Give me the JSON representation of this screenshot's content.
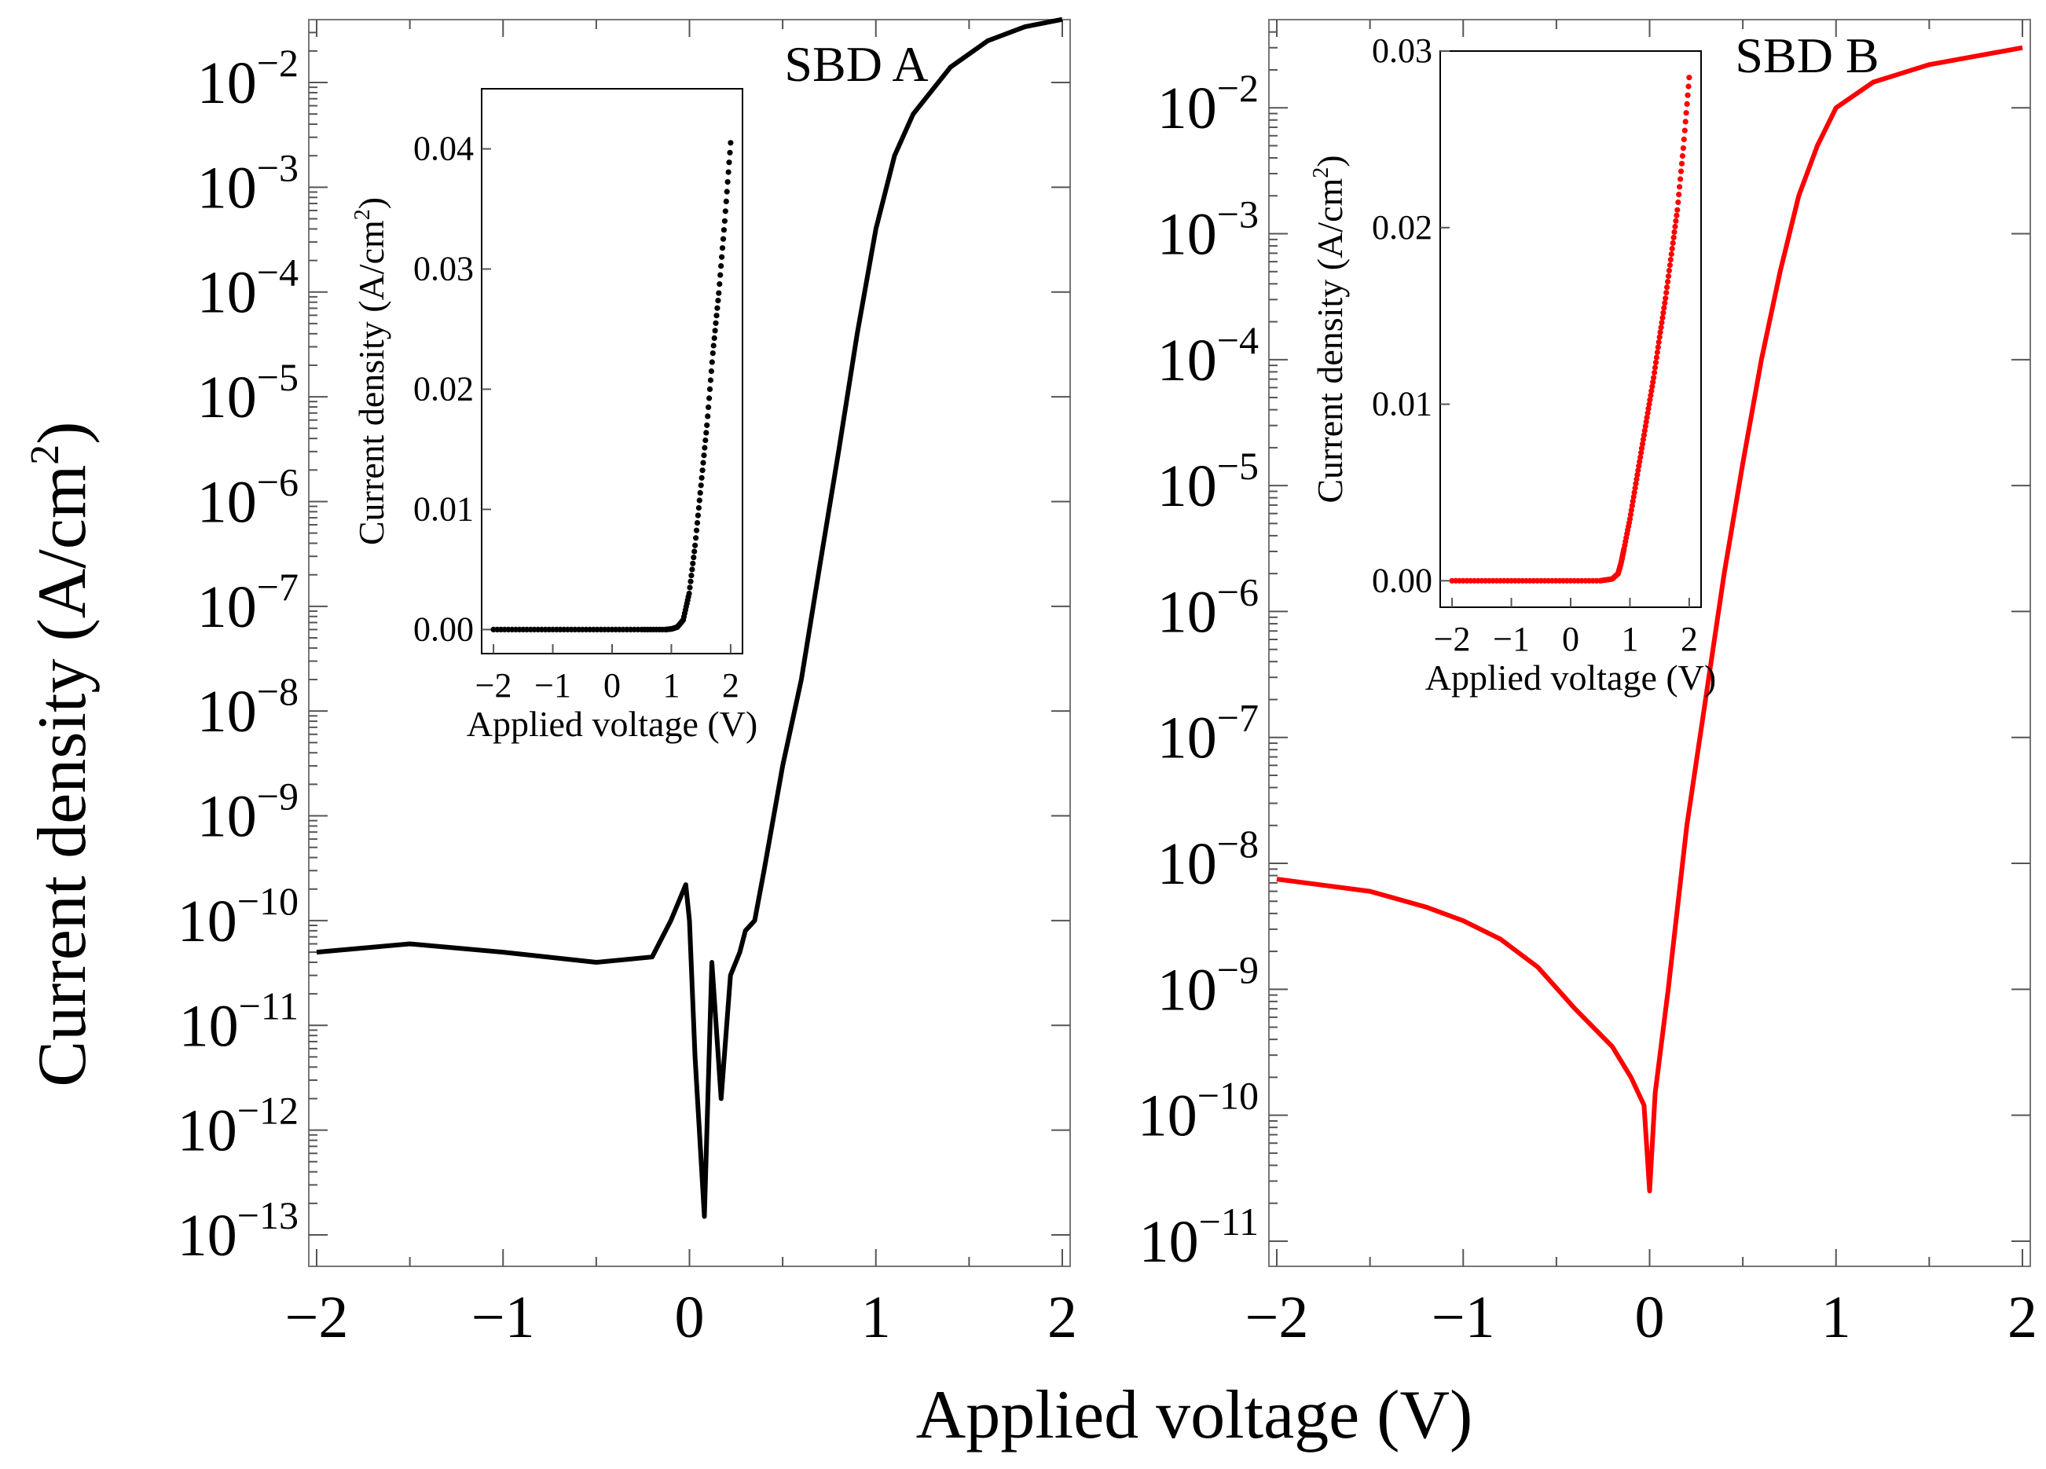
{
  "chart_data": [
    {
      "type": "line",
      "panel": "left",
      "title": "SBD A",
      "xlabel": "Applied voltage (V)",
      "ylabel": "Current density (A/cm2)",
      "y_scale": "log",
      "xlim": [
        -2,
        2
      ],
      "ylim_exponent": [
        -13.3,
        -1.4
      ],
      "x_ticks": [
        "−2",
        "−1",
        "0",
        "1",
        "2"
      ],
      "y_ticks": [
        {
          "base": "10",
          "exp": "−2"
        },
        {
          "base": "10",
          "exp": "−3"
        },
        {
          "base": "10",
          "exp": "−4"
        },
        {
          "base": "10",
          "exp": "−5"
        },
        {
          "base": "10",
          "exp": "−6"
        },
        {
          "base": "10",
          "exp": "−7"
        },
        {
          "base": "10",
          "exp": "−8"
        },
        {
          "base": "10",
          "exp": "−9"
        },
        {
          "base": "10",
          "exp": "−10"
        },
        {
          "base": "10",
          "exp": "−11"
        },
        {
          "base": "10",
          "exp": "−12"
        },
        {
          "base": "10",
          "exp": "−13"
        }
      ],
      "series": [
        {
          "name": "SBD A",
          "color": "#000000",
          "x": [
            -2.0,
            -1.5,
            -1.0,
            -0.5,
            -0.2,
            -0.1,
            -0.02,
            0.0,
            0.03,
            0.08,
            0.12,
            0.17,
            0.22,
            0.27,
            0.3,
            0.35,
            0.4,
            0.5,
            0.6,
            0.7,
            0.8,
            0.9,
            1.0,
            1.1,
            1.2,
            1.4,
            1.6,
            1.8,
            2.0
          ],
          "y": [
            5e-11,
            6e-11,
            5e-11,
            4e-11,
            4.5e-11,
            1e-10,
            2.2e-10,
            1e-10,
            5e-12,
            1.5e-13,
            4e-11,
            2e-12,
            3e-11,
            5e-11,
            8e-11,
            1e-10,
            3e-10,
            3e-09,
            2e-08,
            2.5e-07,
            3e-06,
            4e-05,
            0.0004,
            0.002,
            0.005,
            0.014,
            0.025,
            0.034,
            0.04
          ]
        }
      ],
      "inset": {
        "type": "scatter",
        "xlabel": "Applied voltage (V)",
        "ylabel": "Current density (A/cm2)",
        "xlim": [
          -2.2,
          2.2
        ],
        "ylim": [
          -0.002,
          0.045
        ],
        "x_ticks": [
          "−2",
          "−1",
          "0",
          "1",
          "2"
        ],
        "y_ticks": [
          "0.00",
          "0.01",
          "0.02",
          "0.03",
          "0.04"
        ],
        "color": "#000000",
        "x": [
          -2.0,
          -1.5,
          -1.0,
          -0.5,
          0.0,
          0.5,
          0.9,
          1.0,
          1.1,
          1.2,
          1.3,
          1.4,
          1.5,
          1.6,
          1.7,
          1.8,
          1.9,
          2.0
        ],
        "y": [
          0.0,
          0.0,
          0.0,
          0.0,
          0.0,
          0.0,
          0.0,
          5e-05,
          0.0002,
          0.0008,
          0.003,
          0.007,
          0.012,
          0.017,
          0.023,
          0.028,
          0.034,
          0.0405
        ]
      }
    },
    {
      "type": "line",
      "panel": "right",
      "title": "SBD B",
      "xlabel": "Applied voltage (V)",
      "ylabel": "Current density (A/cm2)",
      "y_scale": "log",
      "xlim": [
        -2,
        2
      ],
      "ylim_exponent": [
        -11.2,
        -1.3
      ],
      "x_ticks": [
        "−2",
        "−1",
        "0",
        "1",
        "2"
      ],
      "y_ticks": [
        {
          "base": "10",
          "exp": "−2"
        },
        {
          "base": "10",
          "exp": "−3"
        },
        {
          "base": "10",
          "exp": "−4"
        },
        {
          "base": "10",
          "exp": "−5"
        },
        {
          "base": "10",
          "exp": "−6"
        },
        {
          "base": "10",
          "exp": "−7"
        },
        {
          "base": "10",
          "exp": "−8"
        },
        {
          "base": "10",
          "exp": "−9"
        },
        {
          "base": "10",
          "exp": "−10"
        },
        {
          "base": "10",
          "exp": "−11"
        }
      ],
      "series": [
        {
          "name": "SBD B",
          "color": "#ff0000",
          "x": [
            -2.0,
            -1.5,
            -1.2,
            -1.0,
            -0.8,
            -0.6,
            -0.4,
            -0.2,
            -0.1,
            -0.03,
            0.0,
            0.03,
            0.1,
            0.2,
            0.3,
            0.4,
            0.5,
            0.6,
            0.7,
            0.8,
            0.9,
            1.0,
            1.2,
            1.5,
            2.0
          ],
          "y": [
            7.5e-09,
            6e-09,
            4.5e-09,
            3.5e-09,
            2.5e-09,
            1.5e-09,
            7e-10,
            3.5e-10,
            2e-10,
            1.2e-10,
            2.5e-11,
            1.5e-10,
            1e-09,
            2e-08,
            2e-07,
            2e-06,
            1.5e-05,
            0.0001,
            0.0005,
            0.002,
            0.005,
            0.01,
            0.016,
            0.022,
            0.03
          ]
        }
      ],
      "inset": {
        "type": "scatter",
        "xlabel": "Applied voltage (V)",
        "ylabel": "Current density (A/cm2)",
        "xlim": [
          -2.2,
          2.2
        ],
        "ylim": [
          -0.0015,
          0.03
        ],
        "x_ticks": [
          "−2",
          "−1",
          "0",
          "1",
          "2"
        ],
        "y_ticks": [
          "0.00",
          "0.01",
          "0.02",
          "0.03"
        ],
        "color": "#ff0000",
        "x": [
          -2.0,
          -1.5,
          -1.0,
          -0.5,
          0.0,
          0.5,
          0.7,
          0.8,
          0.85,
          0.9,
          1.0,
          1.1,
          1.2,
          1.3,
          1.4,
          1.5,
          1.6,
          1.7,
          1.8,
          1.9,
          2.0
        ],
        "y": [
          0.0,
          0.0,
          0.0,
          0.0,
          0.0,
          0.0,
          0.0001,
          0.0004,
          0.001,
          0.0018,
          0.0035,
          0.0055,
          0.0075,
          0.0095,
          0.0115,
          0.0138,
          0.016,
          0.0185,
          0.021,
          0.0245,
          0.0285
        ]
      }
    }
  ],
  "figure": {
    "ylabel_main": "Current density (A/cm",
    "ylabel_sup": "2",
    "ylabel_close": ")",
    "xlabel_main": "Applied voltage (V)",
    "inset_ylabel_main": "Current density (A/cm",
    "inset_ylabel_sup": "2",
    "inset_ylabel_close": ")"
  }
}
